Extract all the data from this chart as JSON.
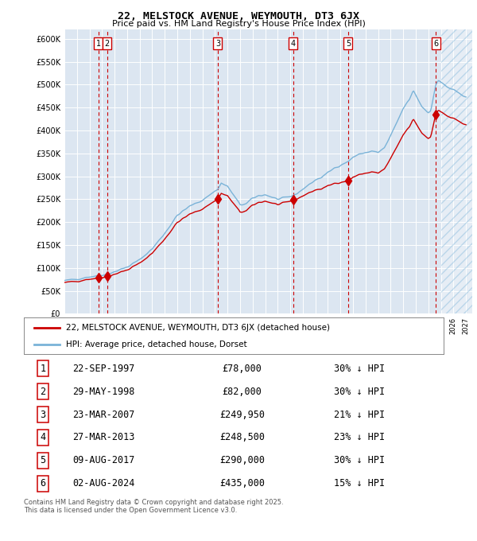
{
  "title": "22, MELSTOCK AVENUE, WEYMOUTH, DT3 6JX",
  "subtitle": "Price paid vs. HM Land Registry's House Price Index (HPI)",
  "background_color": "#ffffff",
  "plot_bg_color": "#dce6f1",
  "grid_color": "#ffffff",
  "hpi_color": "#7ab3d8",
  "price_color": "#cc0000",
  "yticks": [
    0,
    50000,
    100000,
    150000,
    200000,
    250000,
    300000,
    350000,
    400000,
    450000,
    500000,
    550000,
    600000
  ],
  "xlim_start": 1995.0,
  "xlim_end": 2027.5,
  "future_start": 2025.0,
  "sales": [
    {
      "num": 1,
      "date": "22-SEP-1997",
      "year": 1997.72,
      "price": 78000,
      "pct": "30%",
      "dir": "↓"
    },
    {
      "num": 2,
      "date": "29-MAY-1998",
      "year": 1998.41,
      "price": 82000,
      "pct": "30%",
      "dir": "↓"
    },
    {
      "num": 3,
      "date": "23-MAR-2007",
      "year": 2007.22,
      "price": 249950,
      "pct": "21%",
      "dir": "↓"
    },
    {
      "num": 4,
      "date": "27-MAR-2013",
      "year": 2013.23,
      "price": 248500,
      "pct": "23%",
      "dir": "↓"
    },
    {
      "num": 5,
      "date": "09-AUG-2017",
      "year": 2017.61,
      "price": 290000,
      "pct": "30%",
      "dir": "↓"
    },
    {
      "num": 6,
      "date": "02-AUG-2024",
      "year": 2024.59,
      "price": 435000,
      "pct": "15%",
      "dir": "↓"
    }
  ],
  "legend_line1": "22, MELSTOCK AVENUE, WEYMOUTH, DT3 6JX (detached house)",
  "legend_line2": "HPI: Average price, detached house, Dorset",
  "footer1": "Contains HM Land Registry data © Crown copyright and database right 2025.",
  "footer2": "This data is licensed under the Open Government Licence v3.0."
}
